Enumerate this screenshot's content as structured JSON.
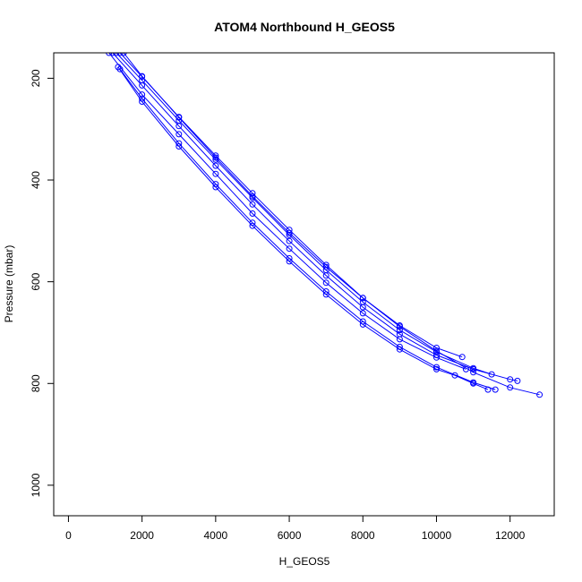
{
  "chart_data": {
    "type": "scatter",
    "title": "ATOM4 Northbound H_GEOS5",
    "xlabel": "H_GEOS5",
    "ylabel": "Pressure (mbar)",
    "xlim": [
      -400,
      13200
    ],
    "ylim": [
      1060,
      150
    ],
    "y_reversed": true,
    "x_ticks": [
      0,
      2000,
      4000,
      6000,
      8000,
      10000,
      12000
    ],
    "y_ticks": [
      200,
      400,
      600,
      800,
      1000
    ],
    "marker": "open-circle-with-line",
    "color": "#0000ff",
    "grid": false,
    "legend": "none",
    "series": [
      {
        "x": [
          1100,
          2000,
          3000,
          4000,
          5000,
          6000,
          7000,
          8000,
          9000,
          10000,
          10800
        ],
        "y": [
          150,
          232,
          310,
          388,
          466,
          535,
          602,
          662,
          713,
          749,
          772
        ]
      },
      {
        "x": [
          1200,
          2000,
          3000,
          4000,
          5000,
          6000,
          7000,
          8000,
          9000,
          10000,
          11000,
          12000,
          12200
        ],
        "y": [
          150,
          214,
          294,
          372,
          448,
          520,
          588,
          650,
          703,
          744,
          772,
          792,
          795
        ]
      },
      {
        "x": [
          1300,
          2000,
          3000,
          4000,
          5000,
          6000,
          7000,
          8000,
          9000,
          10000,
          11000,
          11500
        ],
        "y": [
          150,
          204,
          283,
          360,
          435,
          508,
          577,
          640,
          695,
          738,
          770,
          782
        ]
      },
      {
        "x": [
          1400,
          2000,
          3000,
          4000,
          5000,
          6000,
          7000,
          8000,
          9000,
          10000,
          11000,
          12000,
          12800
        ],
        "y": [
          150,
          197,
          276,
          352,
          426,
          498,
          567,
          632,
          688,
          736,
          778,
          808,
          822
        ]
      },
      {
        "x": [
          1500,
          2000,
          3000,
          4000,
          5000,
          6000,
          7000,
          8000,
          9000,
          10000,
          10700
        ],
        "y": [
          150,
          196,
          277,
          356,
          432,
          504,
          571,
          632,
          686,
          730,
          748
        ]
      },
      {
        "x": [
          1350,
          2000,
          3000,
          4000,
          5000,
          6000,
          7000,
          8000,
          9000,
          10000,
          10500,
          11000,
          11400
        ],
        "y": [
          178,
          246,
          334,
          414,
          490,
          560,
          625,
          684,
          733,
          772,
          784,
          800,
          812
        ]
      },
      {
        "x": [
          1400,
          2000,
          3000,
          4000,
          5000,
          6000,
          7000,
          8000,
          9000,
          10000,
          11000,
          11600
        ],
        "y": [
          182,
          240,
          328,
          408,
          484,
          554,
          619,
          678,
          728,
          768,
          798,
          812
        ]
      }
    ]
  }
}
